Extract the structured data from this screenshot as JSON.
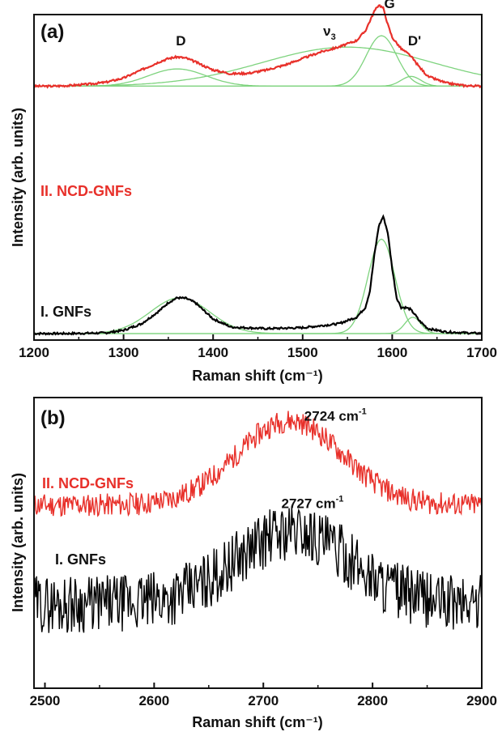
{
  "chart_data": [
    {
      "type": "line",
      "panel_label": "(a)",
      "xlabel": "Raman shift (cm⁻¹)",
      "ylabel": "Intensity (arb. units)",
      "xlim": [
        1200,
        1700
      ],
      "ylim": [
        0,
        1
      ],
      "xticks": [
        1200,
        1300,
        1400,
        1500,
        1600,
        1700
      ],
      "grid": false,
      "series": [
        {
          "name": "II. NCD-GNFs",
          "color": "#e8302a",
          "x": [
            1200,
            1220,
            1240,
            1260,
            1280,
            1300,
            1320,
            1340,
            1350,
            1360,
            1370,
            1380,
            1390,
            1400,
            1420,
            1440,
            1460,
            1480,
            1500,
            1520,
            1540,
            1560,
            1570,
            1580,
            1585,
            1590,
            1595,
            1600,
            1610,
            1620,
            1630,
            1640,
            1660,
            1680,
            1700
          ],
          "y": [
            0.78,
            0.78,
            0.782,
            0.786,
            0.792,
            0.805,
            0.83,
            0.855,
            0.865,
            0.87,
            0.866,
            0.855,
            0.842,
            0.83,
            0.818,
            0.82,
            0.83,
            0.845,
            0.865,
            0.885,
            0.9,
            0.92,
            0.95,
            1.01,
            1.03,
            1.02,
            0.97,
            0.93,
            0.895,
            0.875,
            0.84,
            0.81,
            0.79,
            0.782,
            0.78
          ]
        },
        {
          "name": "I. GNFs",
          "color": "#000000",
          "x": [
            1200,
            1240,
            1280,
            1300,
            1320,
            1340,
            1350,
            1360,
            1370,
            1380,
            1390,
            1400,
            1420,
            1460,
            1500,
            1540,
            1560,
            1570,
            1575,
            1580,
            1585,
            1590,
            1595,
            1600,
            1605,
            1610,
            1615,
            1620,
            1625,
            1630,
            1640,
            1660,
            1700
          ],
          "y": [
            0.02,
            0.02,
            0.022,
            0.03,
            0.05,
            0.09,
            0.115,
            0.13,
            0.128,
            0.115,
            0.09,
            0.065,
            0.04,
            0.035,
            0.038,
            0.05,
            0.07,
            0.1,
            0.15,
            0.26,
            0.35,
            0.38,
            0.33,
            0.22,
            0.13,
            0.1,
            0.1,
            0.095,
            0.08,
            0.06,
            0.035,
            0.025,
            0.02
          ]
        }
      ],
      "fit_color": "#7ed37e",
      "fit_peaks": [
        {
          "center": 1360,
          "width": 32,
          "height": 0.053,
          "baseline": 0.78,
          "spectrum": "II. NCD-GNFs"
        },
        {
          "center": 1550,
          "width": 95,
          "height": 0.12,
          "baseline": 0.78,
          "spectrum": "II. NCD-GNFs"
        },
        {
          "center": 1588,
          "width": 17,
          "height": 0.155,
          "baseline": 0.78,
          "spectrum": "II. NCD-GNFs"
        },
        {
          "center": 1621,
          "width": 11,
          "height": 0.03,
          "baseline": 0.78,
          "spectrum": "II. NCD-GNFs"
        },
        {
          "center": 1363,
          "width": 33,
          "height": 0.11,
          "baseline": 0.02,
          "spectrum": "I. GNFs"
        },
        {
          "center": 1588,
          "width": 15,
          "height": 0.29,
          "baseline": 0.02,
          "spectrum": "I. GNFs"
        },
        {
          "center": 1623,
          "width": 9,
          "height": 0.05,
          "baseline": 0.02,
          "spectrum": "I. GNFs"
        }
      ],
      "annotations": [
        {
          "text": "D",
          "x": 1364,
          "y": 0.905
        },
        {
          "text": "ν",
          "sub": "3",
          "x": 1530,
          "y": 0.935
        },
        {
          "text": "G",
          "x": 1597,
          "y": 1.02
        },
        {
          "text": "D'",
          "x": 1625,
          "y": 0.905
        }
      ]
    },
    {
      "type": "line",
      "panel_label": "(b)",
      "xlabel": "Raman shift (cm⁻¹)",
      "ylabel": "Intensity (arb. units)",
      "xlim": [
        2490,
        2900
      ],
      "ylim": [
        0,
        1
      ],
      "xticks": [
        2500,
        2600,
        2700,
        2800,
        2900
      ],
      "grid": false,
      "series": [
        {
          "name": "II. NCD-GNFs",
          "color": "#e8302a",
          "center": 2724,
          "baseline": 0.63,
          "amplitude": 0.29,
          "width": 48,
          "noise": 0.04
        },
        {
          "name": "I. GNFs",
          "color": "#000000",
          "center": 2727,
          "baseline": 0.29,
          "amplitude": 0.25,
          "width": 52,
          "noise": 0.1
        }
      ],
      "annotations": [
        {
          "text": "2724 cm",
          "sup": "-1",
          "x": 2766,
          "y": 0.92
        },
        {
          "text": "2727 cm",
          "sup": "-1",
          "x": 2745,
          "y": 0.62
        }
      ]
    }
  ]
}
